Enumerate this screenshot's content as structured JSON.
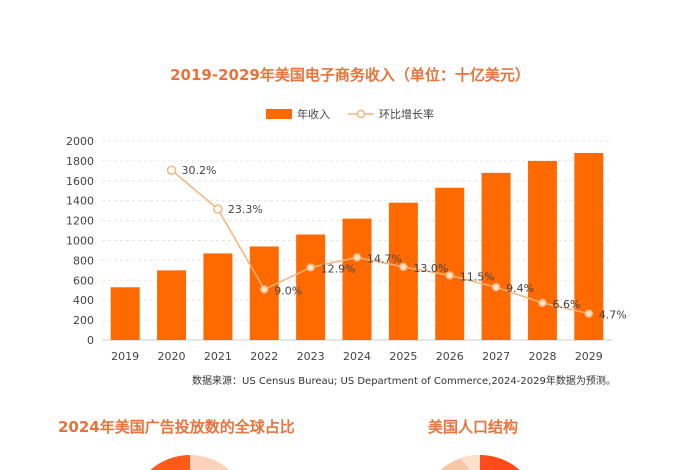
{
  "chart_data": {
    "type": "bar",
    "title": "2019-2029年美国电子商务收入（单位：十亿美元）",
    "categories": [
      "2019",
      "2020",
      "2021",
      "2022",
      "2023",
      "2024",
      "2025",
      "2026",
      "2027",
      "2028",
      "2029"
    ],
    "series": [
      {
        "name": "年收入",
        "type": "bar",
        "color": "#ff6a00",
        "values": [
          530,
          700,
          870,
          940,
          1060,
          1220,
          1380,
          1530,
          1680,
          1800,
          1880
        ]
      },
      {
        "name": "环比增长率",
        "type": "line",
        "color": "#f5b47a",
        "values": [
          null,
          30.2,
          23.3,
          9.0,
          12.9,
          14.7,
          13.0,
          11.5,
          9.4,
          6.6,
          4.7
        ],
        "labels": [
          "",
          "30.2%",
          "23.3%",
          "9.0%",
          "12.9%",
          "14.7%",
          "13.0%",
          "11.5%",
          "9.4%",
          "6.6%",
          "4.7%"
        ]
      }
    ],
    "yticks": [
      0,
      200,
      400,
      600,
      800,
      1000,
      1200,
      1400,
      1600,
      1800,
      2000
    ],
    "ylim": [
      0,
      2000
    ],
    "y2lim": [
      0,
      35.4
    ],
    "grid": true,
    "legend": "top",
    "source": "数据来源：US Census Bureau; US Department of Commerce,2024-2029年数据为预测。"
  },
  "bottom": {
    "left_title": "2024年美国广告投放数的全球占比",
    "right_title": "美国人口结构"
  }
}
